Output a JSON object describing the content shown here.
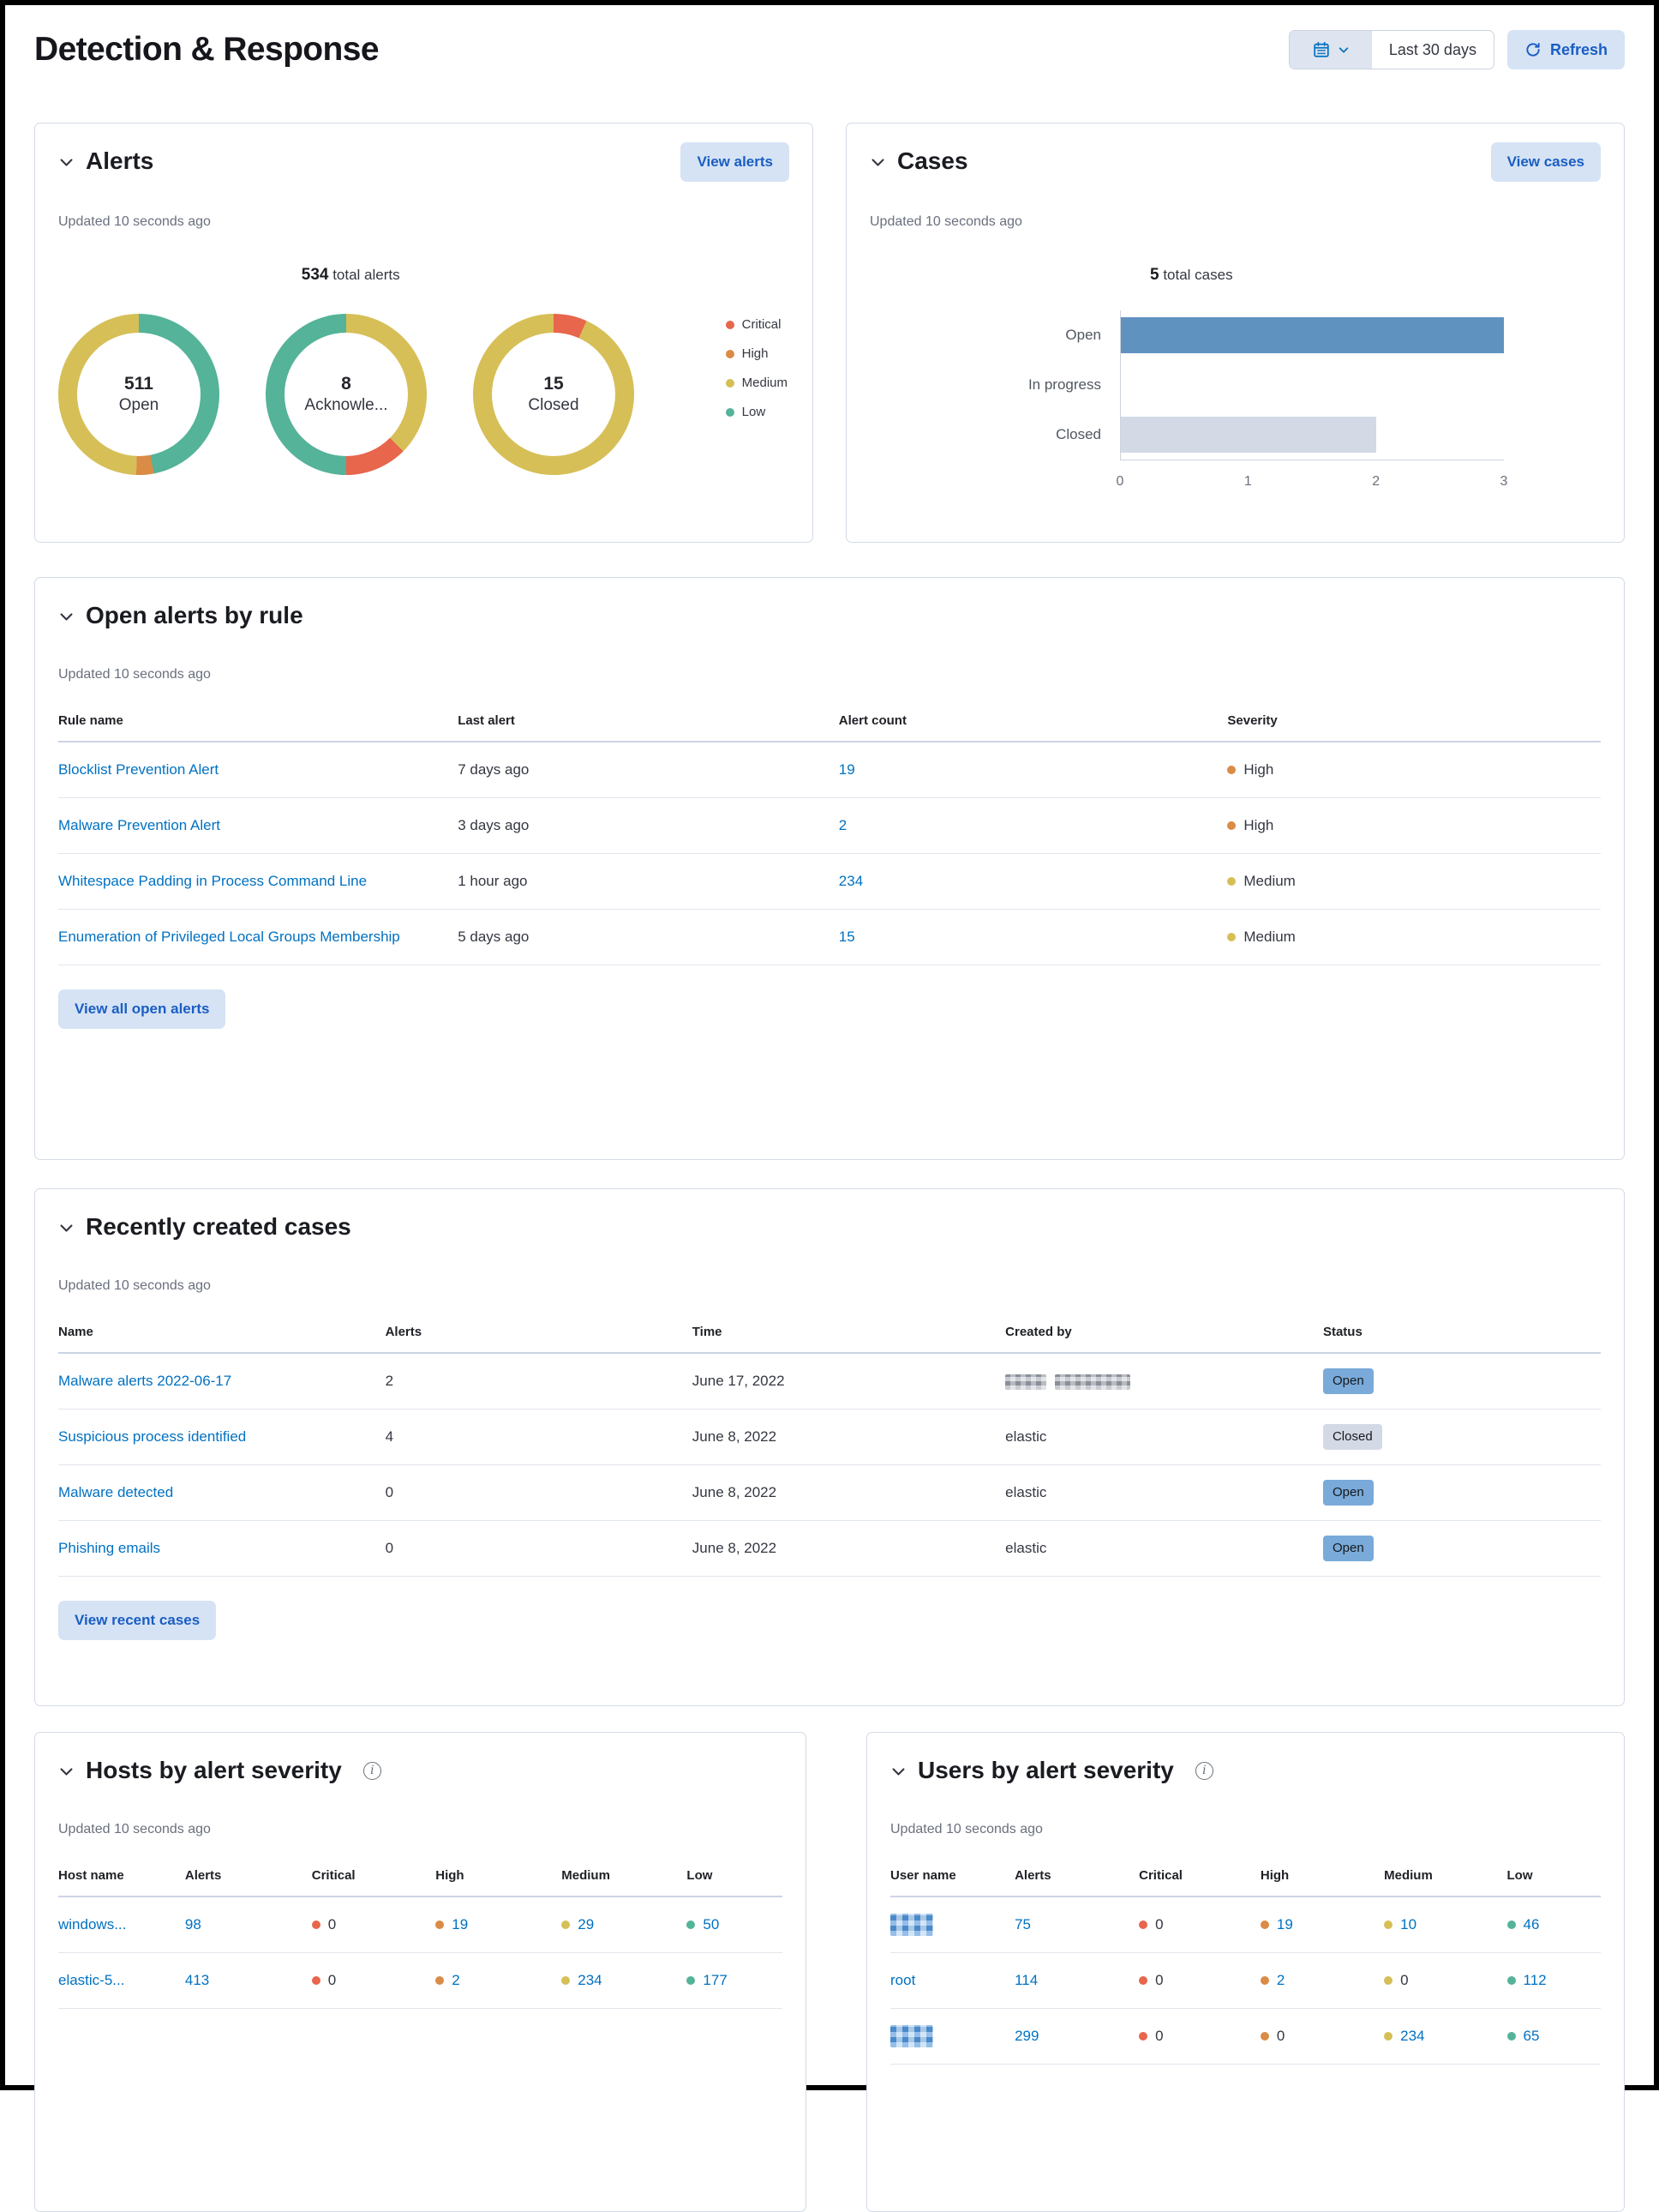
{
  "header": {
    "title": "Detection & Response",
    "date_range": "Last 30 days",
    "refresh_label": "Refresh"
  },
  "severity_colors": {
    "Critical": "#E7664C",
    "High": "#DA8B45",
    "Medium": "#D6BF57",
    "Low": "#54B399"
  },
  "alerts_panel": {
    "title": "Alerts",
    "view_button": "View alerts",
    "updated": "Updated 10 seconds ago",
    "total_value": "534",
    "total_label": "total alerts",
    "chart_data": {
      "type": "donut",
      "title": "534 total alerts",
      "legend": [
        {
          "label": "Critical",
          "color": "#E7664C"
        },
        {
          "label": "High",
          "color": "#DA8B45"
        },
        {
          "label": "Medium",
          "color": "#D6BF57"
        },
        {
          "label": "Low",
          "color": "#54B399"
        }
      ],
      "donuts": [
        {
          "value": "511",
          "label": "Open",
          "segments": [
            {
              "name": "Low",
              "color": "#54B399",
              "pct": 47
            },
            {
              "name": "High",
              "color": "#DA8B45",
              "pct": 3.5
            },
            {
              "name": "Medium",
              "color": "#D6BF57",
              "pct": 49.5
            }
          ]
        },
        {
          "value": "8",
          "label": "Acknowle...",
          "segments": [
            {
              "name": "Medium",
              "color": "#D6BF57",
              "pct": 37.5
            },
            {
              "name": "Critical",
              "color": "#E7664C",
              "pct": 12.5
            },
            {
              "name": "Low",
              "color": "#54B399",
              "pct": 50
            }
          ]
        },
        {
          "value": "15",
          "label": "Closed",
          "segments": [
            {
              "name": "Critical",
              "color": "#E7664C",
              "pct": 6.7
            },
            {
              "name": "Medium",
              "color": "#D6BF57",
              "pct": 93.3
            }
          ]
        }
      ]
    }
  },
  "cases_panel": {
    "title": "Cases",
    "view_button": "View cases",
    "updated": "Updated 10 seconds ago",
    "total_value": "5",
    "total_label": "total cases",
    "chart_data": {
      "type": "bar",
      "orientation": "horizontal",
      "title": "5 total cases",
      "categories": [
        "Open",
        "In progress",
        "Closed"
      ],
      "values": [
        3,
        0,
        2
      ],
      "colors": [
        "#6092C0",
        "#6092C0",
        "#D3DAE6"
      ],
      "xticks": [
        "0",
        "1",
        "2",
        "3"
      ],
      "xmax": 3
    }
  },
  "open_alerts_panel": {
    "title": "Open alerts by rule",
    "updated": "Updated 10 seconds ago",
    "columns": [
      "Rule name",
      "Last alert",
      "Alert count",
      "Severity"
    ],
    "rows": [
      {
        "rule": "Blocklist Prevention Alert",
        "last_alert": "7 days ago",
        "count": "19",
        "severity": "High"
      },
      {
        "rule": "Malware Prevention Alert",
        "last_alert": "3 days ago",
        "count": "2",
        "severity": "High"
      },
      {
        "rule": "Whitespace Padding in Process Command Line",
        "last_alert": "1 hour ago",
        "count": "234",
        "severity": "Medium"
      },
      {
        "rule": "Enumeration of Privileged Local Groups Membership",
        "last_alert": "5 days ago",
        "count": "15",
        "severity": "Medium"
      }
    ],
    "view_button": "View all open alerts"
  },
  "recent_cases_panel": {
    "title": "Recently created cases",
    "updated": "Updated 10 seconds ago",
    "columns": [
      "Name",
      "Alerts",
      "Time",
      "Created by",
      "Status"
    ],
    "rows": [
      {
        "name": "Malware alerts 2022-06-17",
        "alerts": "2",
        "time": "June 17, 2022",
        "created_by": "",
        "created_by_redacted": true,
        "status": "Open"
      },
      {
        "name": "Suspicious process identified",
        "alerts": "4",
        "time": "June 8, 2022",
        "created_by": "elastic",
        "created_by_redacted": false,
        "status": "Closed"
      },
      {
        "name": "Malware detected",
        "alerts": "0",
        "time": "June 8, 2022",
        "created_by": "elastic",
        "created_by_redacted": false,
        "status": "Open"
      },
      {
        "name": "Phishing emails",
        "alerts": "0",
        "time": "June 8, 2022",
        "created_by": "elastic",
        "created_by_redacted": false,
        "status": "Open"
      }
    ],
    "view_button": "View recent cases"
  },
  "hosts_panel": {
    "title": "Hosts by alert severity",
    "updated": "Updated 10 seconds ago",
    "columns": [
      "Host name",
      "Alerts",
      "Critical",
      "High",
      "Medium",
      "Low"
    ],
    "rows": [
      {
        "name": "windows...",
        "redacted": false,
        "alerts": "98",
        "critical": "0",
        "high": "19",
        "medium": "29",
        "low": "50"
      },
      {
        "name": "elastic-5...",
        "redacted": false,
        "alerts": "413",
        "critical": "0",
        "high": "2",
        "medium": "234",
        "low": "177"
      }
    ]
  },
  "users_panel": {
    "title": "Users by alert severity",
    "updated": "Updated 10 seconds ago",
    "columns": [
      "User name",
      "Alerts",
      "Critical",
      "High",
      "Medium",
      "Low"
    ],
    "rows": [
      {
        "name": "",
        "redacted": true,
        "alerts": "75",
        "critical": "0",
        "high": "19",
        "medium": "10",
        "low": "46"
      },
      {
        "name": "root",
        "redacted": false,
        "alerts": "114",
        "critical": "0",
        "high": "2",
        "medium": "0",
        "low": "112"
      },
      {
        "name": "",
        "redacted": true,
        "alerts": "299",
        "critical": "0",
        "high": "0",
        "medium": "234",
        "low": "65"
      }
    ]
  }
}
